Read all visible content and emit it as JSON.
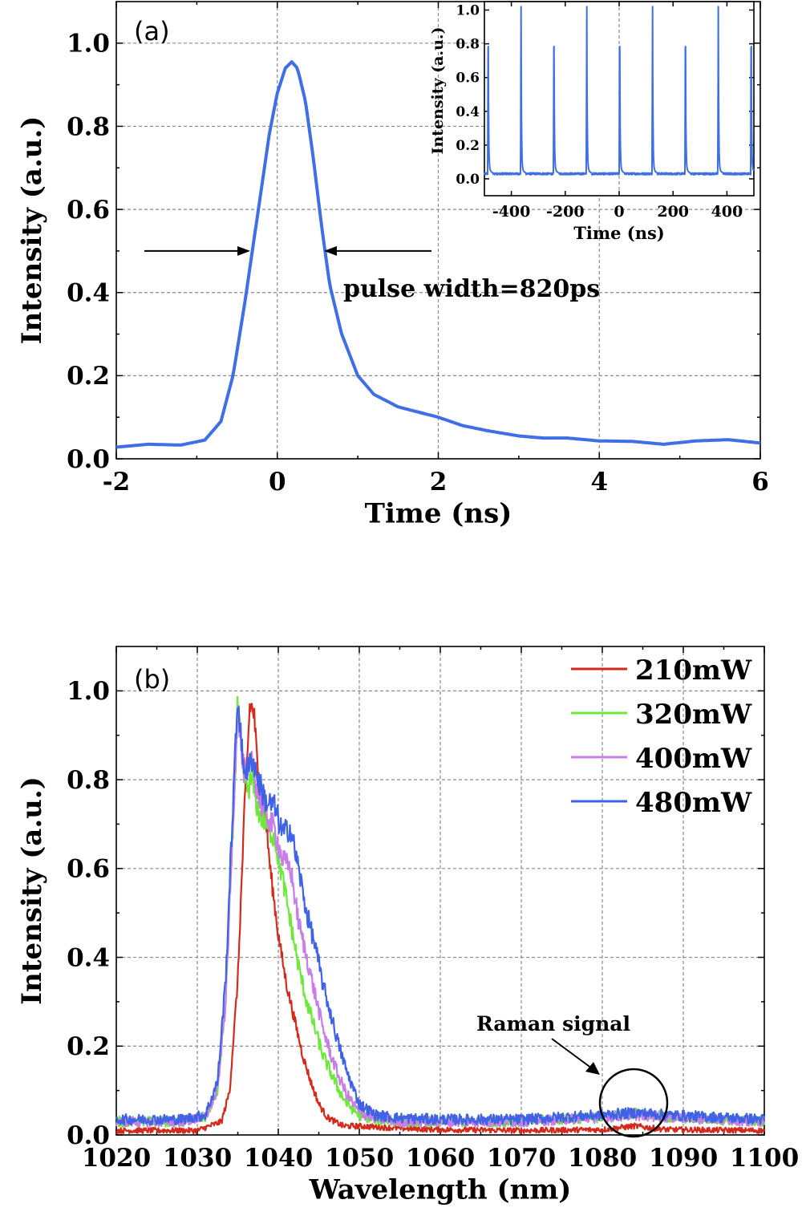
{
  "chart_data": [
    {
      "type": "line",
      "panel_label": "(a)",
      "xlabel": "Time (ns)",
      "ylabel": "Intensity (a.u.)",
      "xlim": [
        -2,
        6
      ],
      "ylim": [
        0,
        1.1
      ],
      "xticks": [
        -2,
        0,
        2,
        4,
        6
      ],
      "xtick_labels": [
        "-2",
        "0",
        "2",
        "4",
        "6"
      ],
      "yticks": [
        0,
        0.2,
        0.4,
        0.6,
        0.8,
        1.0
      ],
      "ytick_labels": [
        "0.0",
        "0.2",
        "0.4",
        "0.6",
        "0.8",
        "1.0"
      ],
      "grid": true,
      "color": "#3f6fe6",
      "annotation": "pulse width=820ps",
      "series": [
        {
          "x": [
            -2,
            -1.6,
            -1.2,
            -0.9,
            -0.7,
            -0.55,
            -0.4,
            -0.25,
            -0.1,
            0.0,
            0.1,
            0.18,
            0.25,
            0.35,
            0.45,
            0.55,
            0.65,
            0.8,
            1.0,
            1.2,
            1.5,
            1.8,
            2.0,
            2.3,
            2.6,
            3.0,
            3.3,
            3.6,
            4.0,
            4.4,
            4.8,
            5.2,
            5.6,
            6.0
          ],
          "y": [
            0.028,
            0.035,
            0.033,
            0.045,
            0.09,
            0.2,
            0.38,
            0.58,
            0.78,
            0.88,
            0.94,
            0.955,
            0.94,
            0.86,
            0.72,
            0.56,
            0.42,
            0.3,
            0.2,
            0.155,
            0.125,
            0.11,
            0.1,
            0.08,
            0.068,
            0.055,
            0.05,
            0.05,
            0.043,
            0.042,
            0.035,
            0.043,
            0.046,
            0.038
          ]
        }
      ],
      "inset": {
        "type": "line",
        "xlabel": "Time (ns)",
        "ylabel": "Intensity (a.u.)",
        "xlim": [
          -500,
          500
        ],
        "ylim": [
          -0.1,
          1.05
        ],
        "xticks": [
          -400,
          -200,
          0,
          200,
          400
        ],
        "xtick_labels": [
          "-400",
          "-200",
          "0",
          "200",
          "400"
        ],
        "yticks": [
          0,
          0.2,
          0.4,
          0.6,
          0.8,
          1.0
        ],
        "ytick_labels": [
          "0.0",
          "0.2",
          "0.4",
          "0.6",
          "0.8",
          "1.0"
        ],
        "peak_positions": [
          -486,
          -364,
          -242,
          -120,
          2,
          124,
          246,
          368,
          490
        ],
        "peak_height": 0.97,
        "baseline": 0.03,
        "color": "#3f6fe6"
      }
    },
    {
      "type": "line",
      "panel_label": "(b)",
      "xlabel": "Wavelength (nm)",
      "ylabel": "Intensity (a.u.)",
      "xlim": [
        1020,
        1100
      ],
      "ylim": [
        0,
        1.1
      ],
      "xticks": [
        1020,
        1030,
        1040,
        1050,
        1060,
        1070,
        1080,
        1090,
        1100
      ],
      "xtick_labels": [
        "1020",
        "1030",
        "1040",
        "1050",
        "1060",
        "1070",
        "1080",
        "1090",
        "1100"
      ],
      "yticks": [
        0,
        0.2,
        0.4,
        0.6,
        0.8,
        1.0
      ],
      "ytick_labels": [
        "0.0",
        "0.2",
        "0.4",
        "0.6",
        "0.8",
        "1.0"
      ],
      "grid": true,
      "legend_position": "top-right",
      "annotation": "Raman signal",
      "series": [
        {
          "name": "210mW",
          "color": "#d42a1c",
          "x": [
            1020,
            1030,
            1033,
            1034,
            1035,
            1035.8,
            1036.5,
            1037.0,
            1037.6,
            1038.2,
            1039.0,
            1040.0,
            1041.0,
            1042.0,
            1043.0,
            1044.0,
            1045.0,
            1046.0,
            1047.0,
            1048.0,
            1050.0,
            1055.0,
            1060.0,
            1070.0,
            1080.0,
            1084.0,
            1088.0,
            1100.0
          ],
          "y": [
            0.01,
            0.01,
            0.03,
            0.1,
            0.35,
            0.72,
            0.97,
            0.95,
            0.78,
            0.76,
            0.6,
            0.45,
            0.34,
            0.26,
            0.18,
            0.12,
            0.07,
            0.04,
            0.03,
            0.02,
            0.02,
            0.015,
            0.012,
            0.01,
            0.012,
            0.02,
            0.012,
            0.01
          ]
        },
        {
          "name": "320mW",
          "color": "#6ee83a",
          "x": [
            1020,
            1028,
            1031,
            1032.5,
            1033.5,
            1034.3,
            1035.0,
            1035.6,
            1036.2,
            1036.8,
            1037.5,
            1038.5,
            1039.5,
            1040.5,
            1041.5,
            1042.5,
            1043.5,
            1044.5,
            1045.5,
            1046.5,
            1047.5,
            1048.5,
            1050.0,
            1052.0,
            1055.0,
            1060.0,
            1070.0,
            1080.0,
            1084.0,
            1088.0,
            1100.0
          ],
          "y": [
            0.03,
            0.03,
            0.04,
            0.1,
            0.3,
            0.65,
            0.97,
            0.82,
            0.78,
            0.8,
            0.73,
            0.7,
            0.67,
            0.58,
            0.48,
            0.38,
            0.3,
            0.24,
            0.18,
            0.14,
            0.1,
            0.07,
            0.045,
            0.035,
            0.03,
            0.03,
            0.03,
            0.04,
            0.05,
            0.04,
            0.03
          ]
        },
        {
          "name": "400mW",
          "color": "#c77ee8",
          "x": [
            1020,
            1028,
            1031,
            1032.5,
            1033.5,
            1034.3,
            1035.0,
            1035.6,
            1036.2,
            1036.8,
            1037.5,
            1038.5,
            1039.5,
            1040.5,
            1041.5,
            1042.5,
            1043.5,
            1044.5,
            1045.5,
            1046.5,
            1047.5,
            1048.5,
            1050.0,
            1052.0,
            1055.0,
            1060.0,
            1070.0,
            1080.0,
            1084.0,
            1088.0,
            1100.0
          ],
          "y": [
            0.03,
            0.03,
            0.04,
            0.1,
            0.3,
            0.65,
            0.98,
            0.83,
            0.8,
            0.85,
            0.76,
            0.72,
            0.69,
            0.62,
            0.6,
            0.48,
            0.4,
            0.32,
            0.24,
            0.18,
            0.13,
            0.09,
            0.05,
            0.038,
            0.03,
            0.03,
            0.03,
            0.04,
            0.045,
            0.04,
            0.03
          ]
        },
        {
          "name": "480mW",
          "color": "#3f62e6",
          "x": [
            1020,
            1028,
            1031,
            1032.5,
            1033.5,
            1034.3,
            1035.0,
            1035.6,
            1036.2,
            1036.8,
            1037.5,
            1038.5,
            1039.5,
            1040.5,
            1041.5,
            1042.5,
            1043.5,
            1044.5,
            1045.5,
            1046.5,
            1047.5,
            1048.5,
            1050.0,
            1052.0,
            1055.0,
            1060.0,
            1070.0,
            1080.0,
            1084.0,
            1088.0,
            1100.0
          ],
          "y": [
            0.035,
            0.035,
            0.045,
            0.12,
            0.35,
            0.7,
            0.99,
            0.84,
            0.82,
            0.85,
            0.8,
            0.75,
            0.74,
            0.68,
            0.69,
            0.6,
            0.5,
            0.43,
            0.34,
            0.27,
            0.2,
            0.14,
            0.07,
            0.045,
            0.038,
            0.035,
            0.035,
            0.045,
            0.05,
            0.045,
            0.035
          ]
        }
      ]
    }
  ]
}
